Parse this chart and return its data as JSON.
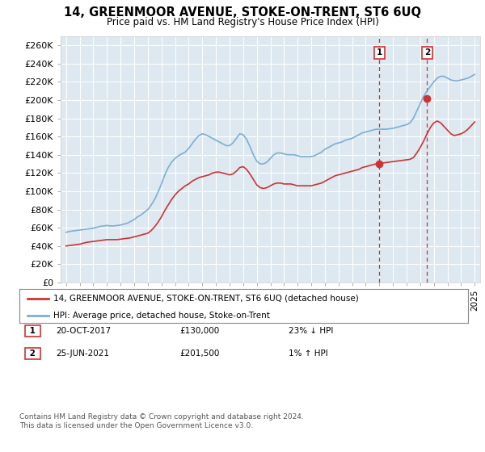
{
  "title": "14, GREENMOOR AVENUE, STOKE-ON-TRENT, ST6 6UQ",
  "subtitle": "Price paid vs. HM Land Registry's House Price Index (HPI)",
  "yticks": [
    0,
    20000,
    40000,
    60000,
    80000,
    100000,
    120000,
    140000,
    160000,
    180000,
    200000,
    220000,
    240000,
    260000
  ],
  "ylim": [
    0,
    270000
  ],
  "xlim_start": 1994.6,
  "xlim_end": 2025.4,
  "xticks": [
    1995,
    1996,
    1997,
    1998,
    1999,
    2000,
    2001,
    2002,
    2003,
    2004,
    2005,
    2006,
    2007,
    2008,
    2009,
    2010,
    2011,
    2012,
    2013,
    2014,
    2015,
    2016,
    2017,
    2018,
    2019,
    2020,
    2021,
    2022,
    2023,
    2024,
    2025
  ],
  "hpi_color": "#7bafd4",
  "price_color": "#cc3333",
  "bg_color": "#dde8f0",
  "grid_color": "#ffffff",
  "marker1_year": 2018.0,
  "marker1_price": 130000,
  "marker1_label": "1",
  "marker2_year": 2021.5,
  "marker2_price": 201500,
  "marker2_label": "2",
  "legend_line1": "14, GREENMOOR AVENUE, STOKE-ON-TRENT, ST6 6UQ (detached house)",
  "legend_line2": "HPI: Average price, detached house, Stoke-on-Trent",
  "footnote": "Contains HM Land Registry data © Crown copyright and database right 2024.\nThis data is licensed under the Open Government Licence v3.0.",
  "hpi_data": [
    [
      1995.0,
      55000
    ],
    [
      1995.25,
      56000
    ],
    [
      1995.5,
      56500
    ],
    [
      1995.75,
      57000
    ],
    [
      1996.0,
      57500
    ],
    [
      1996.25,
      58000
    ],
    [
      1996.5,
      58500
    ],
    [
      1996.75,
      59000
    ],
    [
      1997.0,
      59500
    ],
    [
      1997.25,
      60500
    ],
    [
      1997.5,
      61500
    ],
    [
      1997.75,
      62000
    ],
    [
      1998.0,
      62500
    ],
    [
      1998.25,
      62000
    ],
    [
      1998.5,
      62000
    ],
    [
      1998.75,
      62500
    ],
    [
      1999.0,
      63000
    ],
    [
      1999.25,
      64000
    ],
    [
      1999.5,
      65000
    ],
    [
      1999.75,
      67000
    ],
    [
      2000.0,
      69000
    ],
    [
      2000.25,
      72000
    ],
    [
      2000.5,
      74000
    ],
    [
      2000.75,
      77000
    ],
    [
      2001.0,
      80000
    ],
    [
      2001.25,
      85000
    ],
    [
      2001.5,
      91000
    ],
    [
      2001.75,
      99000
    ],
    [
      2002.0,
      108000
    ],
    [
      2002.25,
      118000
    ],
    [
      2002.5,
      126000
    ],
    [
      2002.75,
      132000
    ],
    [
      2003.0,
      136000
    ],
    [
      2003.25,
      139000
    ],
    [
      2003.5,
      141000
    ],
    [
      2003.75,
      143000
    ],
    [
      2004.0,
      147000
    ],
    [
      2004.25,
      152000
    ],
    [
      2004.5,
      157000
    ],
    [
      2004.75,
      161000
    ],
    [
      2005.0,
      163000
    ],
    [
      2005.25,
      162000
    ],
    [
      2005.5,
      160000
    ],
    [
      2005.75,
      158000
    ],
    [
      2006.0,
      156000
    ],
    [
      2006.25,
      154000
    ],
    [
      2006.5,
      152000
    ],
    [
      2006.75,
      150000
    ],
    [
      2007.0,
      150000
    ],
    [
      2007.25,
      153000
    ],
    [
      2007.5,
      158000
    ],
    [
      2007.75,
      163000
    ],
    [
      2008.0,
      162000
    ],
    [
      2008.25,
      157000
    ],
    [
      2008.5,
      149000
    ],
    [
      2008.75,
      140000
    ],
    [
      2009.0,
      133000
    ],
    [
      2009.25,
      130000
    ],
    [
      2009.5,
      130000
    ],
    [
      2009.75,
      132000
    ],
    [
      2010.0,
      136000
    ],
    [
      2010.25,
      140000
    ],
    [
      2010.5,
      142000
    ],
    [
      2010.75,
      142000
    ],
    [
      2011.0,
      141000
    ],
    [
      2011.25,
      140000
    ],
    [
      2011.5,
      140000
    ],
    [
      2011.75,
      140000
    ],
    [
      2012.0,
      139000
    ],
    [
      2012.25,
      138000
    ],
    [
      2012.5,
      138000
    ],
    [
      2012.75,
      138000
    ],
    [
      2013.0,
      138000
    ],
    [
      2013.25,
      139000
    ],
    [
      2013.5,
      141000
    ],
    [
      2013.75,
      143000
    ],
    [
      2014.0,
      146000
    ],
    [
      2014.25,
      148000
    ],
    [
      2014.5,
      150000
    ],
    [
      2014.75,
      152000
    ],
    [
      2015.0,
      153000
    ],
    [
      2015.25,
      154000
    ],
    [
      2015.5,
      156000
    ],
    [
      2015.75,
      157000
    ],
    [
      2016.0,
      158000
    ],
    [
      2016.25,
      160000
    ],
    [
      2016.5,
      162000
    ],
    [
      2016.75,
      164000
    ],
    [
      2017.0,
      165000
    ],
    [
      2017.25,
      166000
    ],
    [
      2017.5,
      167000
    ],
    [
      2017.75,
      168000
    ],
    [
      2018.0,
      168000
    ],
    [
      2018.25,
      168000
    ],
    [
      2018.5,
      168000
    ],
    [
      2018.75,
      168500
    ],
    [
      2019.0,
      169000
    ],
    [
      2019.25,
      170000
    ],
    [
      2019.5,
      171000
    ],
    [
      2019.75,
      172000
    ],
    [
      2020.0,
      173000
    ],
    [
      2020.25,
      175000
    ],
    [
      2020.5,
      180000
    ],
    [
      2020.75,
      188000
    ],
    [
      2021.0,
      196000
    ],
    [
      2021.25,
      204000
    ],
    [
      2021.5,
      210000
    ],
    [
      2021.75,
      215000
    ],
    [
      2022.0,
      220000
    ],
    [
      2022.25,
      224000
    ],
    [
      2022.5,
      226000
    ],
    [
      2022.75,
      226000
    ],
    [
      2023.0,
      224000
    ],
    [
      2023.25,
      222000
    ],
    [
      2023.5,
      221000
    ],
    [
      2023.75,
      221000
    ],
    [
      2024.0,
      222000
    ],
    [
      2024.25,
      223000
    ],
    [
      2024.5,
      224000
    ],
    [
      2024.75,
      226000
    ],
    [
      2025.0,
      228000
    ]
  ],
  "price_data": [
    [
      1995.0,
      40000
    ],
    [
      1995.25,
      40500
    ],
    [
      1995.5,
      41000
    ],
    [
      1995.75,
      41500
    ],
    [
      1996.0,
      42000
    ],
    [
      1996.25,
      43000
    ],
    [
      1996.5,
      44000
    ],
    [
      1996.75,
      44500
    ],
    [
      1997.0,
      45000
    ],
    [
      1997.25,
      45500
    ],
    [
      1997.5,
      46000
    ],
    [
      1997.75,
      46500
    ],
    [
      1998.0,
      47000
    ],
    [
      1998.25,
      47000
    ],
    [
      1998.5,
      47000
    ],
    [
      1998.75,
      47000
    ],
    [
      1999.0,
      47500
    ],
    [
      1999.25,
      48000
    ],
    [
      1999.5,
      48500
    ],
    [
      1999.75,
      49000
    ],
    [
      2000.0,
      50000
    ],
    [
      2000.25,
      51000
    ],
    [
      2000.5,
      52000
    ],
    [
      2000.75,
      53000
    ],
    [
      2001.0,
      54000
    ],
    [
      2001.25,
      57000
    ],
    [
      2001.5,
      61000
    ],
    [
      2001.75,
      66000
    ],
    [
      2002.0,
      72000
    ],
    [
      2002.25,
      79000
    ],
    [
      2002.5,
      85000
    ],
    [
      2002.75,
      91000
    ],
    [
      2003.0,
      96000
    ],
    [
      2003.25,
      100000
    ],
    [
      2003.5,
      103000
    ],
    [
      2003.75,
      106000
    ],
    [
      2004.0,
      108000
    ],
    [
      2004.25,
      111000
    ],
    [
      2004.5,
      113000
    ],
    [
      2004.75,
      115000
    ],
    [
      2005.0,
      116000
    ],
    [
      2005.25,
      117000
    ],
    [
      2005.5,
      118000
    ],
    [
      2005.75,
      120000
    ],
    [
      2006.0,
      121000
    ],
    [
      2006.25,
      121000
    ],
    [
      2006.5,
      120000
    ],
    [
      2006.75,
      119000
    ],
    [
      2007.0,
      118000
    ],
    [
      2007.25,
      119000
    ],
    [
      2007.5,
      122000
    ],
    [
      2007.75,
      126000
    ],
    [
      2008.0,
      127000
    ],
    [
      2008.25,
      124000
    ],
    [
      2008.5,
      119000
    ],
    [
      2008.75,
      113000
    ],
    [
      2009.0,
      107000
    ],
    [
      2009.25,
      104000
    ],
    [
      2009.5,
      103000
    ],
    [
      2009.75,
      104000
    ],
    [
      2010.0,
      106000
    ],
    [
      2010.25,
      108000
    ],
    [
      2010.5,
      109000
    ],
    [
      2010.75,
      109000
    ],
    [
      2011.0,
      108000
    ],
    [
      2011.25,
      108000
    ],
    [
      2011.5,
      108000
    ],
    [
      2011.75,
      107000
    ],
    [
      2012.0,
      106000
    ],
    [
      2012.25,
      106000
    ],
    [
      2012.5,
      106000
    ],
    [
      2012.75,
      106000
    ],
    [
      2013.0,
      106000
    ],
    [
      2013.25,
      107000
    ],
    [
      2013.5,
      108000
    ],
    [
      2013.75,
      109000
    ],
    [
      2014.0,
      111000
    ],
    [
      2014.25,
      113000
    ],
    [
      2014.5,
      115000
    ],
    [
      2014.75,
      117000
    ],
    [
      2015.0,
      118000
    ],
    [
      2015.25,
      119000
    ],
    [
      2015.5,
      120000
    ],
    [
      2015.75,
      121000
    ],
    [
      2016.0,
      122000
    ],
    [
      2016.25,
      123000
    ],
    [
      2016.5,
      124000
    ],
    [
      2016.75,
      126000
    ],
    [
      2017.0,
      127000
    ],
    [
      2017.25,
      128000
    ],
    [
      2017.5,
      129000
    ],
    [
      2017.75,
      130000
    ],
    [
      2018.0,
      130000
    ],
    [
      2018.25,
      131000
    ],
    [
      2018.5,
      131500
    ],
    [
      2018.75,
      132000
    ],
    [
      2019.0,
      132500
    ],
    [
      2019.25,
      133000
    ],
    [
      2019.5,
      133500
    ],
    [
      2019.75,
      134000
    ],
    [
      2020.0,
      134500
    ],
    [
      2020.25,
      135000
    ],
    [
      2020.5,
      137000
    ],
    [
      2020.75,
      142000
    ],
    [
      2021.0,
      148000
    ],
    [
      2021.25,
      155000
    ],
    [
      2021.5,
      163000
    ],
    [
      2021.75,
      170000
    ],
    [
      2022.0,
      175000
    ],
    [
      2022.25,
      177000
    ],
    [
      2022.5,
      175000
    ],
    [
      2022.75,
      171000
    ],
    [
      2023.0,
      167000
    ],
    [
      2023.25,
      163000
    ],
    [
      2023.5,
      161000
    ],
    [
      2023.75,
      162000
    ],
    [
      2024.0,
      163000
    ],
    [
      2024.25,
      165000
    ],
    [
      2024.5,
      168000
    ],
    [
      2024.75,
      172000
    ],
    [
      2025.0,
      176000
    ]
  ]
}
